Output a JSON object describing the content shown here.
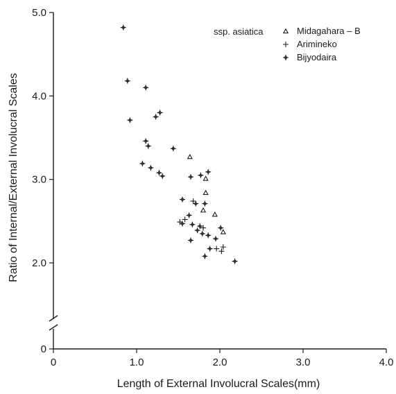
{
  "chart_data": {
    "type": "scatter",
    "xlabel": "Length of External Involucral Scales(mm)",
    "ylabel": "Ratio of Internal/External Involucral Scales",
    "xlim": [
      0,
      4.0
    ],
    "ylim": [
      0,
      5.0
    ],
    "y_axis_break": true,
    "x_ticks": [
      {
        "value": 0,
        "label": "0"
      },
      {
        "value": 1.0,
        "label": "1.0"
      },
      {
        "value": 2.0,
        "label": "2.0"
      },
      {
        "value": 3.0,
        "label": "3.0"
      },
      {
        "value": 4.0,
        "label": "4.0"
      }
    ],
    "y_ticks": [
      {
        "value": 0,
        "label": "0"
      },
      {
        "value": 2.0,
        "label": "2.0"
      },
      {
        "value": 3.0,
        "label": "3.0"
      },
      {
        "value": 4.0,
        "label": "4.0"
      },
      {
        "value": 5.0,
        "label": "5.0"
      }
    ],
    "legend_title": "ssp. asiatica",
    "legend_position": "top-right",
    "series": [
      {
        "name": "Midagahara – B",
        "marker": "triangle",
        "points": [
          {
            "x": 1.64,
            "y": 3.27
          },
          {
            "x": 1.8,
            "y": 2.63
          },
          {
            "x": 1.83,
            "y": 2.84
          },
          {
            "x": 1.83,
            "y": 3.01
          },
          {
            "x": 1.94,
            "y": 2.58
          },
          {
            "x": 2.04,
            "y": 2.37
          }
        ]
      },
      {
        "name": "Arimineko",
        "marker": "plus",
        "points": [
          {
            "x": 1.52,
            "y": 2.49
          },
          {
            "x": 1.58,
            "y": 2.52
          },
          {
            "x": 1.68,
            "y": 2.74
          },
          {
            "x": 1.8,
            "y": 2.42
          },
          {
            "x": 1.96,
            "y": 2.17
          },
          {
            "x": 2.02,
            "y": 2.14
          },
          {
            "x": 2.04,
            "y": 2.19
          }
        ]
      },
      {
        "name": "Bijyodaira",
        "marker": "star",
        "points": [
          {
            "x": 0.84,
            "y": 4.82
          },
          {
            "x": 0.89,
            "y": 4.18
          },
          {
            "x": 0.92,
            "y": 3.71
          },
          {
            "x": 1.07,
            "y": 3.19
          },
          {
            "x": 1.11,
            "y": 4.1
          },
          {
            "x": 1.11,
            "y": 3.46
          },
          {
            "x": 1.14,
            "y": 3.4
          },
          {
            "x": 1.17,
            "y": 3.14
          },
          {
            "x": 1.23,
            "y": 3.75
          },
          {
            "x": 1.28,
            "y": 3.8
          },
          {
            "x": 1.27,
            "y": 3.08
          },
          {
            "x": 1.31,
            "y": 3.04
          },
          {
            "x": 1.44,
            "y": 3.37
          },
          {
            "x": 1.55,
            "y": 2.76
          },
          {
            "x": 1.55,
            "y": 2.47
          },
          {
            "x": 1.63,
            "y": 2.57
          },
          {
            "x": 1.65,
            "y": 3.03
          },
          {
            "x": 1.65,
            "y": 2.27
          },
          {
            "x": 1.67,
            "y": 2.46
          },
          {
            "x": 1.71,
            "y": 2.71
          },
          {
            "x": 1.73,
            "y": 2.39
          },
          {
            "x": 1.76,
            "y": 2.44
          },
          {
            "x": 1.77,
            "y": 3.05
          },
          {
            "x": 1.79,
            "y": 2.35
          },
          {
            "x": 1.82,
            "y": 2.71
          },
          {
            "x": 1.82,
            "y": 2.08
          },
          {
            "x": 1.86,
            "y": 3.09
          },
          {
            "x": 1.86,
            "y": 2.33
          },
          {
            "x": 1.88,
            "y": 2.17
          },
          {
            "x": 1.95,
            "y": 2.29
          },
          {
            "x": 2.01,
            "y": 2.42
          },
          {
            "x": 2.18,
            "y": 2.02
          }
        ]
      }
    ]
  }
}
